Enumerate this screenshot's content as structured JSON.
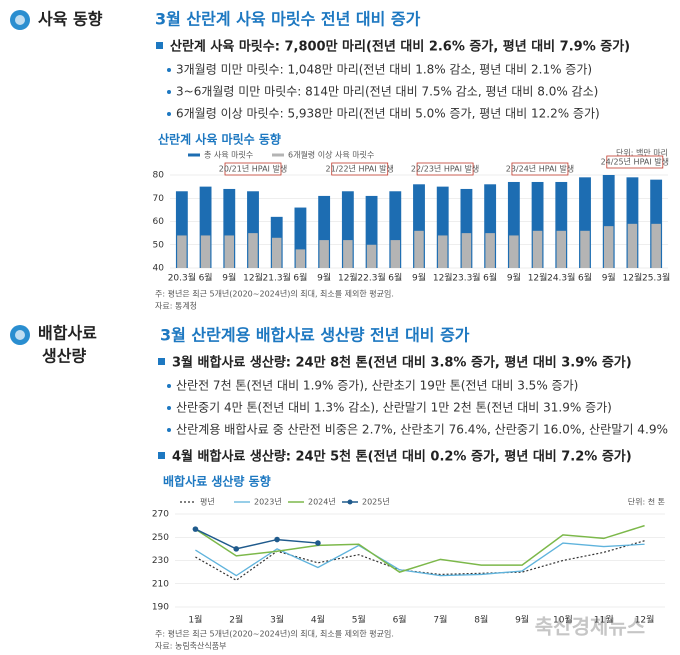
{
  "document": {
    "section1": {
      "label": "사육 동향",
      "heading": "3월 산란계 사육 마릿수 전년 대비 증가",
      "main": "산란계 사육 마릿수: 7,800만 마리(전년 대비 2.6% 증가, 평년 대비 7.9% 증가)",
      "items": [
        "3개월령 미만 마릿수: 1,048만 마리(전년 대비 1.8% 감소, 평년 대비 2.1% 증가)",
        "3~6개월령 미만 마릿수: 814만 마리(전년 대비 7.5% 감소, 평년 대비 8.0% 감소)",
        "6개월령 이상 마릿수: 5,938만 마리(전년 대비 5.0% 증가, 평년 대비 12.2% 증가)"
      ]
    },
    "section2": {
      "label": [
        "배합사료",
        "생산량"
      ],
      "heading": "3월 산란계용 배합사료 생산량 전년 대비 증가",
      "main": "3월 배합사료 생산량: 24만 8천 톤(전년 대비 3.8% 증가, 평년 대비 3.9% 증가)",
      "items": [
        "산란전 7천 톤(전년 대비 1.9% 증가), 산란초기 19만 톤(전년 대비 3.5% 증가)",
        "산란중기 4만 톤(전년 대비 1.3% 감소), 산란말기 1만 2천 톤(전년 대비 31.9% 증가)",
        "산란계용 배합사료 중 산란전 비중은 2.7%, 산란초기 76.4%, 산란중기 16.0%, 산란말기 4.9%"
      ],
      "main2": "4월 배합사료 생산량: 24만 5천 톤(전년 대비 0.2% 증가, 평년 대비 7.2% 증가)"
    },
    "watermark": "축산경제뉴스"
  },
  "chart_data": [
    {
      "type": "bar",
      "title": "산란계 사육 마릿수 동향",
      "unit": "단위: 백만 마리",
      "categories": [
        "20.3월",
        "6월",
        "9월",
        "12월",
        "21.3월",
        "6월",
        "9월",
        "12월",
        "22.3월",
        "6월",
        "9월",
        "12월",
        "23.3월",
        "6월",
        "9월",
        "12월",
        "24.3월",
        "6월",
        "9월",
        "12월",
        "25.3월"
      ],
      "series": [
        {
          "name": "총 사육 마릿수",
          "color": "#1d6db2",
          "values": [
            73,
            75,
            74,
            73,
            62,
            66,
            71,
            73,
            71,
            73,
            76,
            75,
            74,
            76,
            77,
            77,
            77,
            79,
            80,
            79,
            78
          ]
        },
        {
          "name": "6개월령 이상 사육 마릿수",
          "color": "#b4b4b4",
          "values": [
            54,
            54,
            54,
            55,
            53,
            48,
            52,
            52,
            50,
            52,
            56,
            54,
            55,
            55,
            54,
            56,
            56,
            56,
            58,
            59,
            59
          ]
        }
      ],
      "annotations": [
        "20/21년 HPAI 발생",
        "21/22년 HPAI 발생",
        "22/23년 HPAI 발생",
        "23/24년 HPAI 발생",
        "24/25년 HPAI 발생"
      ],
      "ylim": [
        40,
        80
      ],
      "yticks": [
        40,
        50,
        60,
        70,
        80
      ],
      "note": "주: 평년은 최근 5개년(2020~2024년)의 최대, 최소를 제외한 평균임.",
      "source": "자료: 통계청"
    },
    {
      "type": "line",
      "title": "배합사료 생산량 동향",
      "unit": "단위: 천 톤",
      "categories": [
        "1월",
        "2월",
        "3월",
        "4월",
        "5월",
        "6월",
        "7월",
        "8월",
        "9월",
        "10월",
        "11월",
        "12월"
      ],
      "series": [
        {
          "name": "평년",
          "color": "#333333",
          "values": [
            233,
            213,
            238,
            228,
            235,
            222,
            218,
            219,
            220,
            230,
            237,
            247
          ]
        },
        {
          "name": "2023년",
          "color": "#5fb3dc",
          "values": [
            239,
            217,
            240,
            224,
            243,
            222,
            217,
            218,
            221,
            245,
            242,
            244
          ]
        },
        {
          "name": "2024년",
          "color": "#7cb84a",
          "values": [
            257,
            234,
            238,
            243,
            244,
            220,
            231,
            226,
            226,
            252,
            249,
            260
          ]
        },
        {
          "name": "2025년",
          "color": "#1f5a8c",
          "values": [
            257,
            240,
            248,
            245,
            null,
            null,
            null,
            null,
            null,
            null,
            null,
            null
          ]
        }
      ],
      "ylim": [
        190,
        270
      ],
      "yticks": [
        190,
        210,
        230,
        250,
        270
      ],
      "note": "주: 평년은 최근 5개년(2020~2024년)의 최대, 최소를 제외한 평균임.",
      "source": "자료: 농림축산식품부"
    }
  ]
}
